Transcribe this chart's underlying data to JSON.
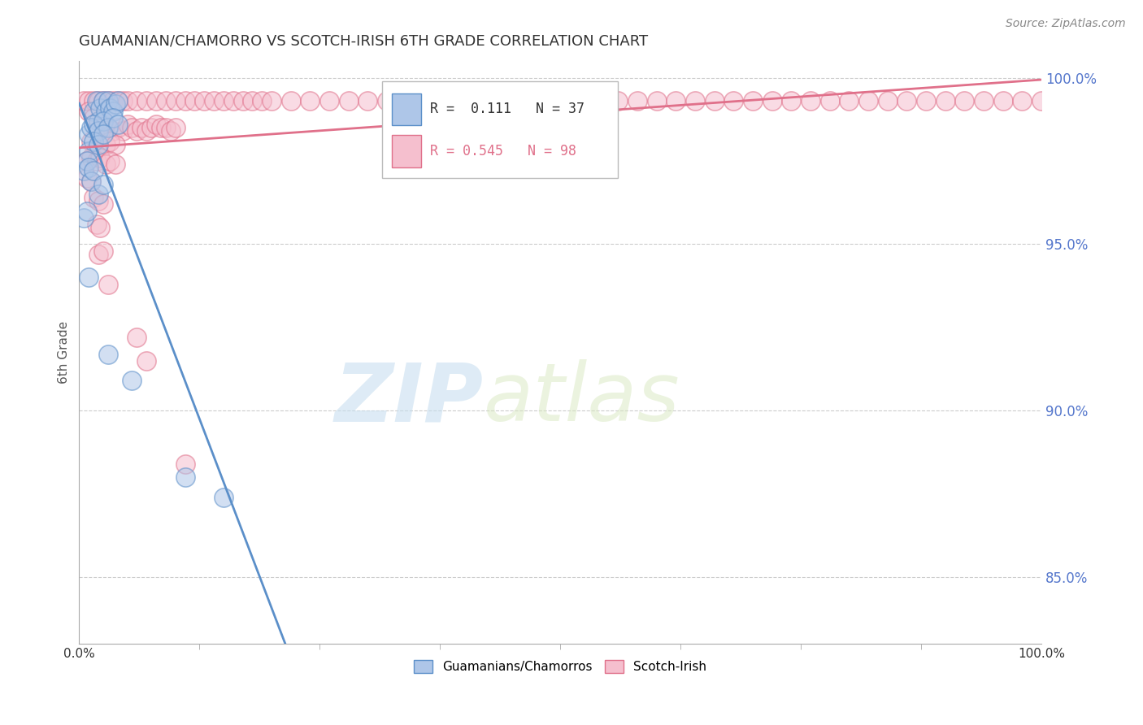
{
  "title": "GUAMANIAN/CHAMORRO VS SCOTCH-IRISH 6TH GRADE CORRELATION CHART",
  "source": "Source: ZipAtlas.com",
  "ylabel": "6th Grade",
  "xlim": [
    0.0,
    1.0
  ],
  "ylim": [
    0.83,
    1.005
  ],
  "y_ticks": [
    0.85,
    0.9,
    0.95,
    1.0
  ],
  "y_tick_labels": [
    "85.0%",
    "90.0%",
    "95.0%",
    "100.0%"
  ],
  "legend_blue_label": "Guamanians/Chamorros",
  "legend_pink_label": "Scotch-Irish",
  "watermark_ZIP": "ZIP",
  "watermark_atlas": "atlas",
  "blue_color": "#aec6e8",
  "pink_color": "#f5bfce",
  "blue_edge_color": "#5b8fc9",
  "pink_edge_color": "#e0708a",
  "blue_line_color": "#5b8fc9",
  "pink_line_color": "#e0708a",
  "blue_scatter": [
    [
      0.01,
      0.983
    ],
    [
      0.015,
      0.99
    ],
    [
      0.018,
      0.993
    ],
    [
      0.02,
      0.987
    ],
    [
      0.022,
      0.991
    ],
    [
      0.025,
      0.993
    ],
    [
      0.028,
      0.99
    ],
    [
      0.03,
      0.993
    ],
    [
      0.032,
      0.991
    ],
    [
      0.035,
      0.99
    ],
    [
      0.038,
      0.992
    ],
    [
      0.04,
      0.993
    ],
    [
      0.012,
      0.985
    ],
    [
      0.015,
      0.986
    ],
    [
      0.02,
      0.984
    ],
    [
      0.025,
      0.987
    ],
    [
      0.03,
      0.985
    ],
    [
      0.035,
      0.988
    ],
    [
      0.04,
      0.986
    ],
    [
      0.01,
      0.978
    ],
    [
      0.015,
      0.981
    ],
    [
      0.02,
      0.98
    ],
    [
      0.025,
      0.983
    ],
    [
      0.005,
      0.972
    ],
    [
      0.008,
      0.975
    ],
    [
      0.01,
      0.973
    ],
    [
      0.012,
      0.969
    ],
    [
      0.015,
      0.972
    ],
    [
      0.02,
      0.965
    ],
    [
      0.025,
      0.968
    ],
    [
      0.005,
      0.958
    ],
    [
      0.008,
      0.96
    ],
    [
      0.01,
      0.94
    ],
    [
      0.03,
      0.917
    ],
    [
      0.055,
      0.909
    ],
    [
      0.11,
      0.88
    ],
    [
      0.15,
      0.874
    ]
  ],
  "pink_scatter": [
    [
      0.005,
      0.993
    ],
    [
      0.01,
      0.993
    ],
    [
      0.015,
      0.993
    ],
    [
      0.02,
      0.993
    ],
    [
      0.025,
      0.993
    ],
    [
      0.03,
      0.993
    ],
    [
      0.035,
      0.993
    ],
    [
      0.04,
      0.993
    ],
    [
      0.045,
      0.993
    ],
    [
      0.05,
      0.993
    ],
    [
      0.06,
      0.993
    ],
    [
      0.07,
      0.993
    ],
    [
      0.08,
      0.993
    ],
    [
      0.09,
      0.993
    ],
    [
      0.1,
      0.993
    ],
    [
      0.11,
      0.993
    ],
    [
      0.12,
      0.993
    ],
    [
      0.13,
      0.993
    ],
    [
      0.14,
      0.993
    ],
    [
      0.15,
      0.993
    ],
    [
      0.16,
      0.993
    ],
    [
      0.17,
      0.993
    ],
    [
      0.18,
      0.993
    ],
    [
      0.19,
      0.993
    ],
    [
      0.2,
      0.993
    ],
    [
      0.22,
      0.993
    ],
    [
      0.24,
      0.993
    ],
    [
      0.26,
      0.993
    ],
    [
      0.28,
      0.993
    ],
    [
      0.3,
      0.993
    ],
    [
      0.32,
      0.993
    ],
    [
      0.34,
      0.993
    ],
    [
      0.36,
      0.993
    ],
    [
      0.38,
      0.993
    ],
    [
      0.4,
      0.993
    ],
    [
      0.42,
      0.993
    ],
    [
      0.44,
      0.993
    ],
    [
      0.46,
      0.993
    ],
    [
      0.48,
      0.993
    ],
    [
      0.5,
      0.993
    ],
    [
      0.52,
      0.993
    ],
    [
      0.54,
      0.993
    ],
    [
      0.56,
      0.993
    ],
    [
      0.58,
      0.993
    ],
    [
      0.6,
      0.993
    ],
    [
      0.62,
      0.993
    ],
    [
      0.64,
      0.993
    ],
    [
      0.66,
      0.993
    ],
    [
      0.68,
      0.993
    ],
    [
      0.7,
      0.993
    ],
    [
      0.72,
      0.993
    ],
    [
      0.74,
      0.993
    ],
    [
      0.76,
      0.993
    ],
    [
      0.78,
      0.993
    ],
    [
      0.8,
      0.993
    ],
    [
      0.82,
      0.993
    ],
    [
      0.84,
      0.993
    ],
    [
      0.86,
      0.993
    ],
    [
      0.88,
      0.993
    ],
    [
      0.9,
      0.993
    ],
    [
      0.92,
      0.993
    ],
    [
      0.94,
      0.993
    ],
    [
      0.96,
      0.993
    ],
    [
      0.98,
      0.993
    ],
    [
      1.0,
      0.993
    ],
    [
      0.01,
      0.99
    ],
    [
      0.015,
      0.988
    ],
    [
      0.02,
      0.987
    ],
    [
      0.025,
      0.986
    ],
    [
      0.03,
      0.985
    ],
    [
      0.035,
      0.984
    ],
    [
      0.04,
      0.985
    ],
    [
      0.045,
      0.984
    ],
    [
      0.05,
      0.986
    ],
    [
      0.055,
      0.985
    ],
    [
      0.06,
      0.984
    ],
    [
      0.065,
      0.985
    ],
    [
      0.07,
      0.984
    ],
    [
      0.075,
      0.985
    ],
    [
      0.08,
      0.986
    ],
    [
      0.085,
      0.985
    ],
    [
      0.09,
      0.985
    ],
    [
      0.095,
      0.984
    ],
    [
      0.1,
      0.985
    ],
    [
      0.012,
      0.981
    ],
    [
      0.018,
      0.979
    ],
    [
      0.022,
      0.982
    ],
    [
      0.028,
      0.98
    ],
    [
      0.032,
      0.981
    ],
    [
      0.038,
      0.98
    ],
    [
      0.008,
      0.975
    ],
    [
      0.012,
      0.976
    ],
    [
      0.018,
      0.975
    ],
    [
      0.022,
      0.976
    ],
    [
      0.028,
      0.974
    ],
    [
      0.032,
      0.975
    ],
    [
      0.038,
      0.974
    ],
    [
      0.008,
      0.97
    ],
    [
      0.012,
      0.969
    ],
    [
      0.015,
      0.964
    ],
    [
      0.02,
      0.963
    ],
    [
      0.025,
      0.962
    ],
    [
      0.018,
      0.956
    ],
    [
      0.022,
      0.955
    ],
    [
      0.02,
      0.947
    ],
    [
      0.025,
      0.948
    ],
    [
      0.03,
      0.938
    ],
    [
      0.06,
      0.922
    ],
    [
      0.07,
      0.915
    ],
    [
      0.11,
      0.884
    ]
  ]
}
